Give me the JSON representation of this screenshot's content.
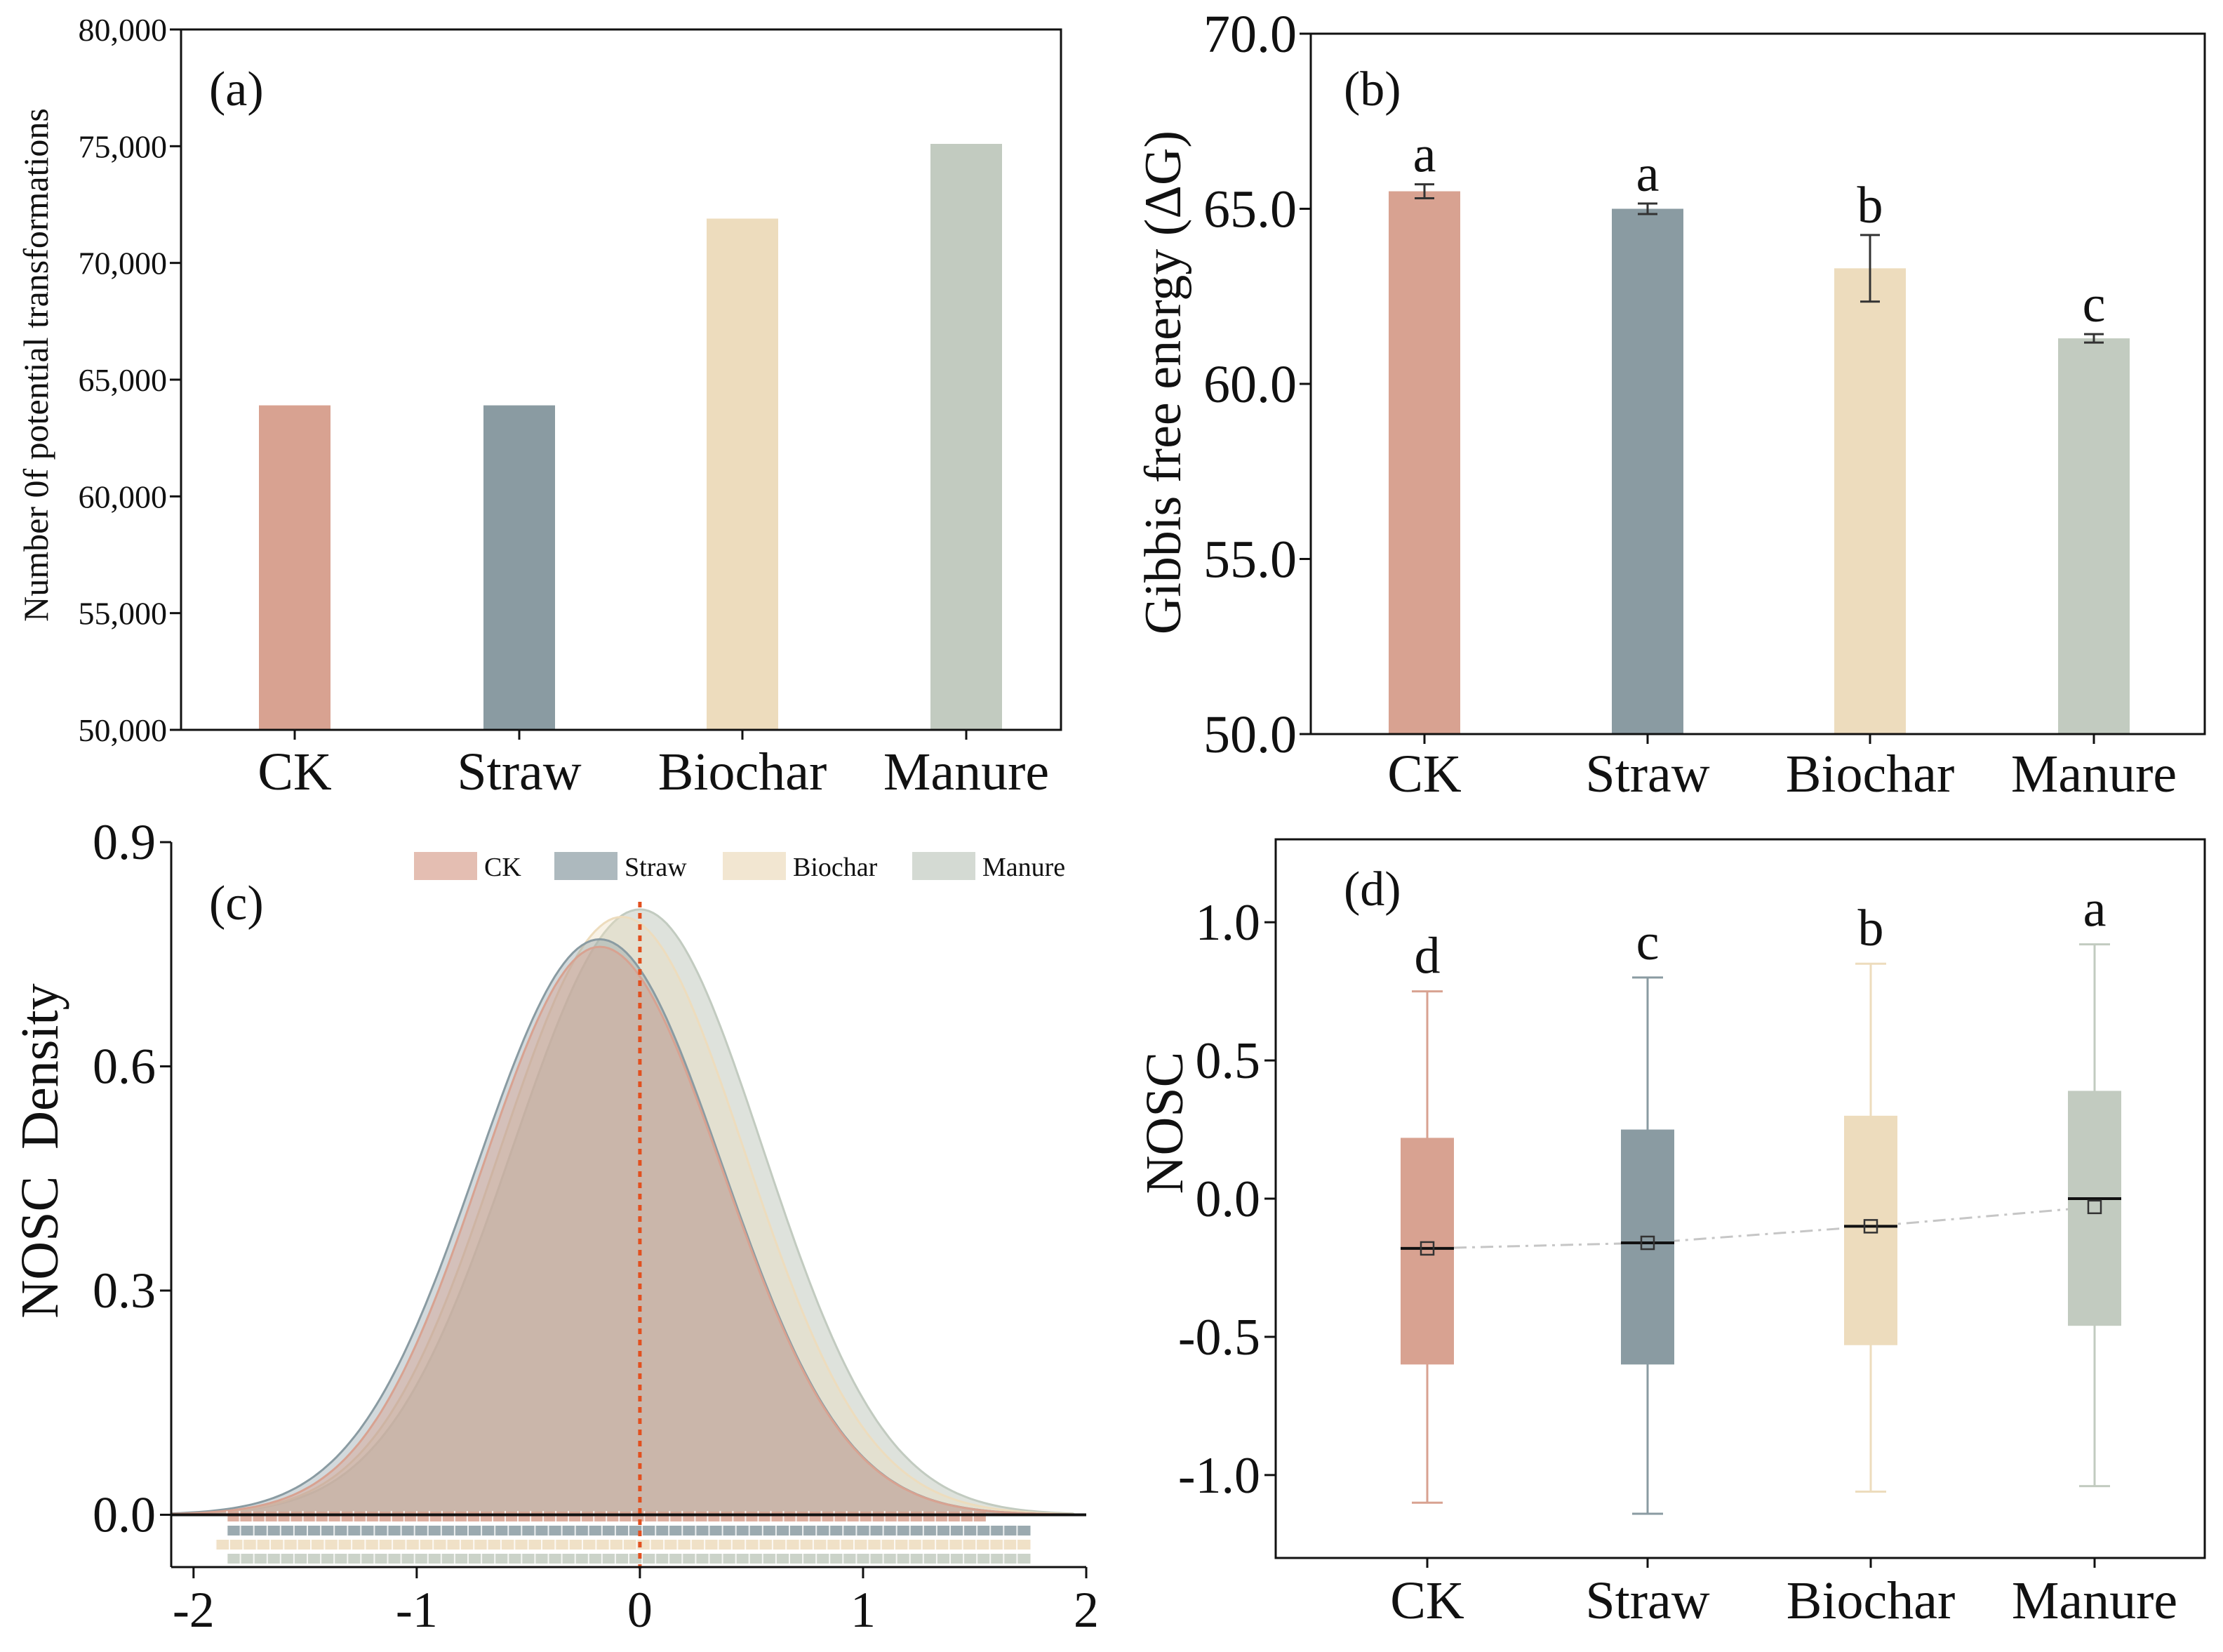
{
  "colors": {
    "ck": "#d8a291",
    "straw": "#8a9ba2",
    "biochar": "#eddcbd",
    "manure": "#c2cbc0",
    "dashed": "#e2501f",
    "trend": "#c6c6c6",
    "axis": "#111111"
  },
  "chart_data": [
    {
      "id": "a",
      "type": "bar",
      "panel_label": "(a)",
      "ylabel": "Number 0f potential transformations",
      "categories": [
        "CK",
        "Straw",
        "Biochar",
        "Manure"
      ],
      "values": [
        63900,
        63900,
        71900,
        75100
      ],
      "ylim": [
        50000,
        80000
      ],
      "yticks": [
        50000,
        55000,
        60000,
        65000,
        70000,
        75000,
        80000
      ],
      "ytick_labels": [
        "50,000",
        "55,000",
        "60,000",
        "65,000",
        "70,000",
        "75,000",
        "80,000"
      ]
    },
    {
      "id": "b",
      "type": "bar",
      "panel_label": "(b)",
      "ylabel": "Gibbis free energy (ΔG)",
      "categories": [
        "CK",
        "Straw",
        "Biochar",
        "Manure"
      ],
      "values": [
        65.5,
        65.0,
        63.3,
        61.3
      ],
      "errors": [
        0.2,
        0.15,
        0.95,
        0.12
      ],
      "letters": [
        "a",
        "a",
        "b",
        "c"
      ],
      "ylim": [
        50,
        70
      ],
      "yticks": [
        50,
        55,
        60,
        65,
        70
      ],
      "ytick_labels": [
        "50.0",
        "55.0",
        "60.0",
        "65.0",
        "70.0"
      ]
    },
    {
      "id": "c",
      "type": "area",
      "panel_label": "(c)",
      "ylabel": "NOSC  Density",
      "xlim": [
        -2.1,
        2
      ],
      "ylim": [
        -0.07,
        0.9
      ],
      "xticks": [
        -2,
        -1,
        0,
        1,
        2
      ],
      "xtick_labels": [
        "-2",
        "-1",
        "0",
        "1",
        "2"
      ],
      "yticks": [
        0,
        0.3,
        0.6,
        0.9
      ],
      "ytick_labels": [
        "0.0",
        "0.3",
        "0.6",
        "0.9"
      ],
      "vline_x": 0,
      "legend_position": "top",
      "series": [
        {
          "name": "CK",
          "peak_x": -0.18,
          "peak_y": 0.76,
          "sd_left": 0.53,
          "sd_right": 0.55,
          "rug_range": [
            -1.85,
            1.55
          ]
        },
        {
          "name": "Straw",
          "peak_x": -0.18,
          "peak_y": 0.77,
          "sd_left": 0.55,
          "sd_right": 0.55,
          "rug_range": [
            -1.85,
            1.75
          ]
        },
        {
          "name": "Biochar",
          "peak_x": -0.08,
          "peak_y": 0.8,
          "sd_left": 0.55,
          "sd_right": 0.55,
          "rug_range": [
            -1.9,
            1.75
          ]
        },
        {
          "name": "Manure",
          "peak_x": 0.0,
          "peak_y": 0.81,
          "sd_left": 0.57,
          "sd_right": 0.55,
          "rug_range": [
            -1.85,
            1.75
          ]
        }
      ]
    },
    {
      "id": "d",
      "type": "box",
      "panel_label": "(d)",
      "ylabel": "NOSC",
      "categories": [
        "CK",
        "Straw",
        "Biochar",
        "Manure"
      ],
      "letters": [
        "d",
        "c",
        "b",
        "a"
      ],
      "ylim": [
        -1.3,
        1.3
      ],
      "yticks": [
        -1.0,
        -0.5,
        0.0,
        0.5,
        1.0
      ],
      "ytick_labels": [
        "-1.0",
        "-0.5",
        "0.0",
        "0.5",
        "1.0"
      ],
      "boxes": [
        {
          "min": -1.1,
          "q1": -0.6,
          "median": -0.18,
          "q3": 0.22,
          "max": 0.75,
          "mean": -0.18
        },
        {
          "min": -1.14,
          "q1": -0.6,
          "median": -0.16,
          "q3": 0.25,
          "max": 0.8,
          "mean": -0.16
        },
        {
          "min": -1.06,
          "q1": -0.53,
          "median": -0.1,
          "q3": 0.3,
          "max": 0.85,
          "mean": -0.1
        },
        {
          "min": -1.04,
          "q1": -0.46,
          "median": 0.0,
          "q3": 0.39,
          "max": 0.92,
          "mean": -0.03
        }
      ]
    }
  ]
}
